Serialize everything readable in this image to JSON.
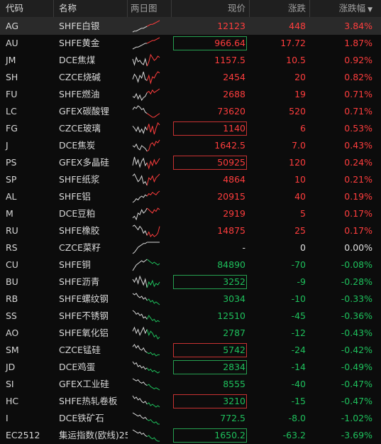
{
  "header": {
    "code": "代码",
    "name": "名称",
    "chart": "两日图",
    "price": "现价",
    "change": "涨跌",
    "pct": "涨跌幅",
    "sort_icon": "triangle-down-icon"
  },
  "colors": {
    "up": "#ff3d3d",
    "down": "#1ec05c",
    "flat": "#e0e0e0",
    "background": "#0c0c0c",
    "header": "#1f1f1f"
  },
  "rows": [
    {
      "code": "AG",
      "name": "SHFE白银",
      "price": "12123",
      "change": "448",
      "pct": "3.84%",
      "dir": "up",
      "box": "",
      "spark": [
        3,
        4,
        4,
        5,
        6,
        7,
        7,
        8,
        9,
        10,
        11,
        11,
        12,
        13,
        14,
        15
      ]
    },
    {
      "code": "AU",
      "name": "SHFE黄金",
      "price": "966.64",
      "change": "17.72",
      "pct": "1.87%",
      "dir": "up",
      "box": "green",
      "spark": [
        2,
        3,
        4,
        4,
        5,
        6,
        7,
        8,
        8,
        9,
        10,
        11,
        11,
        12,
        13,
        14
      ]
    },
    {
      "code": "JM",
      "name": "DCE焦煤",
      "price": "1157.5",
      "change": "10.5",
      "pct": "0.92%",
      "dir": "up",
      "box": "",
      "spark": [
        9,
        5,
        10,
        7,
        8,
        6,
        5,
        9,
        4,
        7,
        12,
        10,
        8,
        9,
        11,
        10
      ]
    },
    {
      "code": "SH",
      "name": "CZCE烧碱",
      "price": "2454",
      "change": "20",
      "pct": "0.82%",
      "dir": "up",
      "box": "",
      "spark": [
        6,
        10,
        8,
        4,
        9,
        7,
        12,
        6,
        5,
        9,
        3,
        8,
        7,
        10,
        12,
        11
      ]
    },
    {
      "code": "FU",
      "name": "SHFE燃油",
      "price": "2688",
      "change": "19",
      "pct": "0.71%",
      "dir": "up",
      "box": "",
      "spark": [
        7,
        6,
        9,
        5,
        8,
        4,
        6,
        7,
        10,
        11,
        9,
        12,
        10,
        11,
        12,
        13
      ]
    },
    {
      "code": "LC",
      "name": "GFEX碳酸锂",
      "price": "73620",
      "change": "520",
      "pct": "0.71%",
      "dir": "up",
      "box": "",
      "spark": [
        9,
        11,
        10,
        12,
        11,
        9,
        10,
        7,
        6,
        5,
        4,
        3,
        3,
        4,
        5,
        6
      ]
    },
    {
      "code": "FG",
      "name": "CZCE玻璃",
      "price": "1140",
      "change": "6",
      "pct": "0.53%",
      "dir": "up",
      "box": "red",
      "spark": [
        10,
        8,
        5,
        9,
        4,
        7,
        3,
        9,
        6,
        12,
        4,
        10,
        2,
        8,
        13,
        11
      ]
    },
    {
      "code": "J",
      "name": "DCE焦炭",
      "price": "1642.5",
      "change": "7.0",
      "pct": "0.43%",
      "dir": "up",
      "box": "",
      "spark": [
        8,
        7,
        9,
        6,
        5,
        8,
        7,
        6,
        4,
        5,
        9,
        10,
        8,
        11,
        10,
        12
      ]
    },
    {
      "code": "PS",
      "name": "GFEX多晶硅",
      "price": "50925",
      "change": "120",
      "pct": "0.24%",
      "dir": "up",
      "box": "red",
      "spark": [
        6,
        12,
        7,
        10,
        5,
        9,
        11,
        6,
        8,
        4,
        9,
        6,
        10,
        7,
        9,
        11
      ]
    },
    {
      "code": "SP",
      "name": "SHFE纸浆",
      "price": "4864",
      "change": "10",
      "pct": "0.21%",
      "dir": "up",
      "box": "",
      "spark": [
        9,
        10,
        8,
        6,
        7,
        9,
        5,
        6,
        4,
        8,
        7,
        9,
        6,
        8,
        9,
        10
      ]
    },
    {
      "code": "AL",
      "name": "SHFE铝",
      "price": "20915",
      "change": "40",
      "pct": "0.19%",
      "dir": "up",
      "box": "",
      "spark": [
        4,
        5,
        7,
        6,
        8,
        9,
        8,
        10,
        9,
        11,
        10,
        12,
        11,
        10,
        12,
        13
      ]
    },
    {
      "code": "M",
      "name": "DCE豆粕",
      "price": "2919",
      "change": "5",
      "pct": "0.17%",
      "dir": "up",
      "box": "",
      "spark": [
        5,
        6,
        4,
        8,
        7,
        10,
        8,
        9,
        11,
        10,
        9,
        8,
        10,
        9,
        11,
        10
      ]
    },
    {
      "code": "RU",
      "name": "SHFE橡胶",
      "price": "14875",
      "change": "25",
      "pct": "0.17%",
      "dir": "up",
      "box": "",
      "spark": [
        12,
        13,
        11,
        9,
        12,
        10,
        6,
        8,
        4,
        7,
        3,
        5,
        3,
        4,
        6,
        12
      ]
    },
    {
      "code": "RS",
      "name": "CZCE菜籽",
      "price": "-",
      "change": "0",
      "pct": "0.00%",
      "dir": "flat",
      "box": "",
      "spark": [
        3,
        4,
        6,
        8,
        9,
        10,
        11,
        11,
        12,
        12,
        12,
        12,
        12,
        12,
        12,
        12
      ]
    },
    {
      "code": "CU",
      "name": "SHFE铜",
      "price": "84890",
      "change": "-70",
      "pct": "-0.08%",
      "dir": "down",
      "box": "",
      "spark": [
        5,
        7,
        9,
        10,
        11,
        12,
        11,
        12,
        13,
        12,
        11,
        10,
        11,
        10,
        9,
        10
      ]
    },
    {
      "code": "BU",
      "name": "SHFE沥青",
      "price": "3252",
      "change": "-9",
      "pct": "-0.28%",
      "dir": "down",
      "box": "green",
      "spark": [
        10,
        8,
        11,
        7,
        12,
        9,
        6,
        10,
        4,
        8,
        6,
        9,
        5,
        7,
        6,
        8
      ]
    },
    {
      "code": "RB",
      "name": "SHFE螺纹钢",
      "price": "3034",
      "change": "-10",
      "pct": "-0.33%",
      "dir": "down",
      "box": "",
      "spark": [
        12,
        11,
        12,
        10,
        9,
        10,
        8,
        9,
        7,
        8,
        6,
        7,
        5,
        6,
        5,
        4
      ]
    },
    {
      "code": "SS",
      "name": "SHFE不锈钢",
      "price": "12510",
      "change": "-45",
      "pct": "-0.36%",
      "dir": "down",
      "box": "",
      "spark": [
        13,
        12,
        10,
        11,
        9,
        10,
        7,
        8,
        6,
        9,
        7,
        5,
        6,
        4,
        5,
        4
      ]
    },
    {
      "code": "AO",
      "name": "SHFE氧化铝",
      "price": "2787",
      "change": "-12",
      "pct": "-0.43%",
      "dir": "down",
      "box": "",
      "spark": [
        10,
        12,
        9,
        11,
        8,
        10,
        12,
        9,
        11,
        8,
        10,
        9,
        7,
        8,
        6,
        7
      ]
    },
    {
      "code": "SM",
      "name": "CZCE锰硅",
      "price": "5742",
      "change": "-24",
      "pct": "-0.42%",
      "dir": "down",
      "box": "red",
      "spark": [
        11,
        13,
        10,
        12,
        9,
        8,
        10,
        7,
        6,
        5,
        6,
        4,
        5,
        3,
        4,
        4
      ]
    },
    {
      "code": "JD",
      "name": "DCE鸡蛋",
      "price": "2834",
      "change": "-14",
      "pct": "-0.49%",
      "dir": "down",
      "box": "green",
      "spark": [
        12,
        10,
        11,
        8,
        9,
        7,
        8,
        6,
        7,
        5,
        6,
        4,
        5,
        4,
        3,
        4
      ]
    },
    {
      "code": "SI",
      "name": "GFEX工业硅",
      "price": "8555",
      "change": "-40",
      "pct": "-0.47%",
      "dir": "down",
      "box": "",
      "spark": [
        13,
        12,
        11,
        12,
        10,
        9,
        10,
        8,
        7,
        8,
        6,
        5,
        4,
        5,
        4,
        3
      ]
    },
    {
      "code": "HC",
      "name": "SHFE热轧卷板",
      "price": "3210",
      "change": "-15",
      "pct": "-0.47%",
      "dir": "down",
      "box": "red",
      "spark": [
        12,
        10,
        11,
        9,
        10,
        8,
        7,
        8,
        6,
        7,
        5,
        6,
        5,
        4,
        5,
        4
      ]
    },
    {
      "code": "I",
      "name": "DCE铁矿石",
      "price": "772.5",
      "change": "-8.0",
      "pct": "-1.02%",
      "dir": "down",
      "box": "",
      "spark": [
        13,
        12,
        11,
        10,
        11,
        9,
        8,
        9,
        7,
        6,
        7,
        5,
        4,
        5,
        3,
        3
      ]
    },
    {
      "code": "EC2512",
      "name": "集运指数(欧线)25",
      "price": "1650.2",
      "change": "-63.2",
      "pct": "-3.69%",
      "dir": "down",
      "box": "green",
      "spark": [
        13,
        12,
        11,
        10,
        11,
        9,
        10,
        8,
        7,
        8,
        6,
        5,
        6,
        4,
        3,
        3
      ]
    }
  ]
}
